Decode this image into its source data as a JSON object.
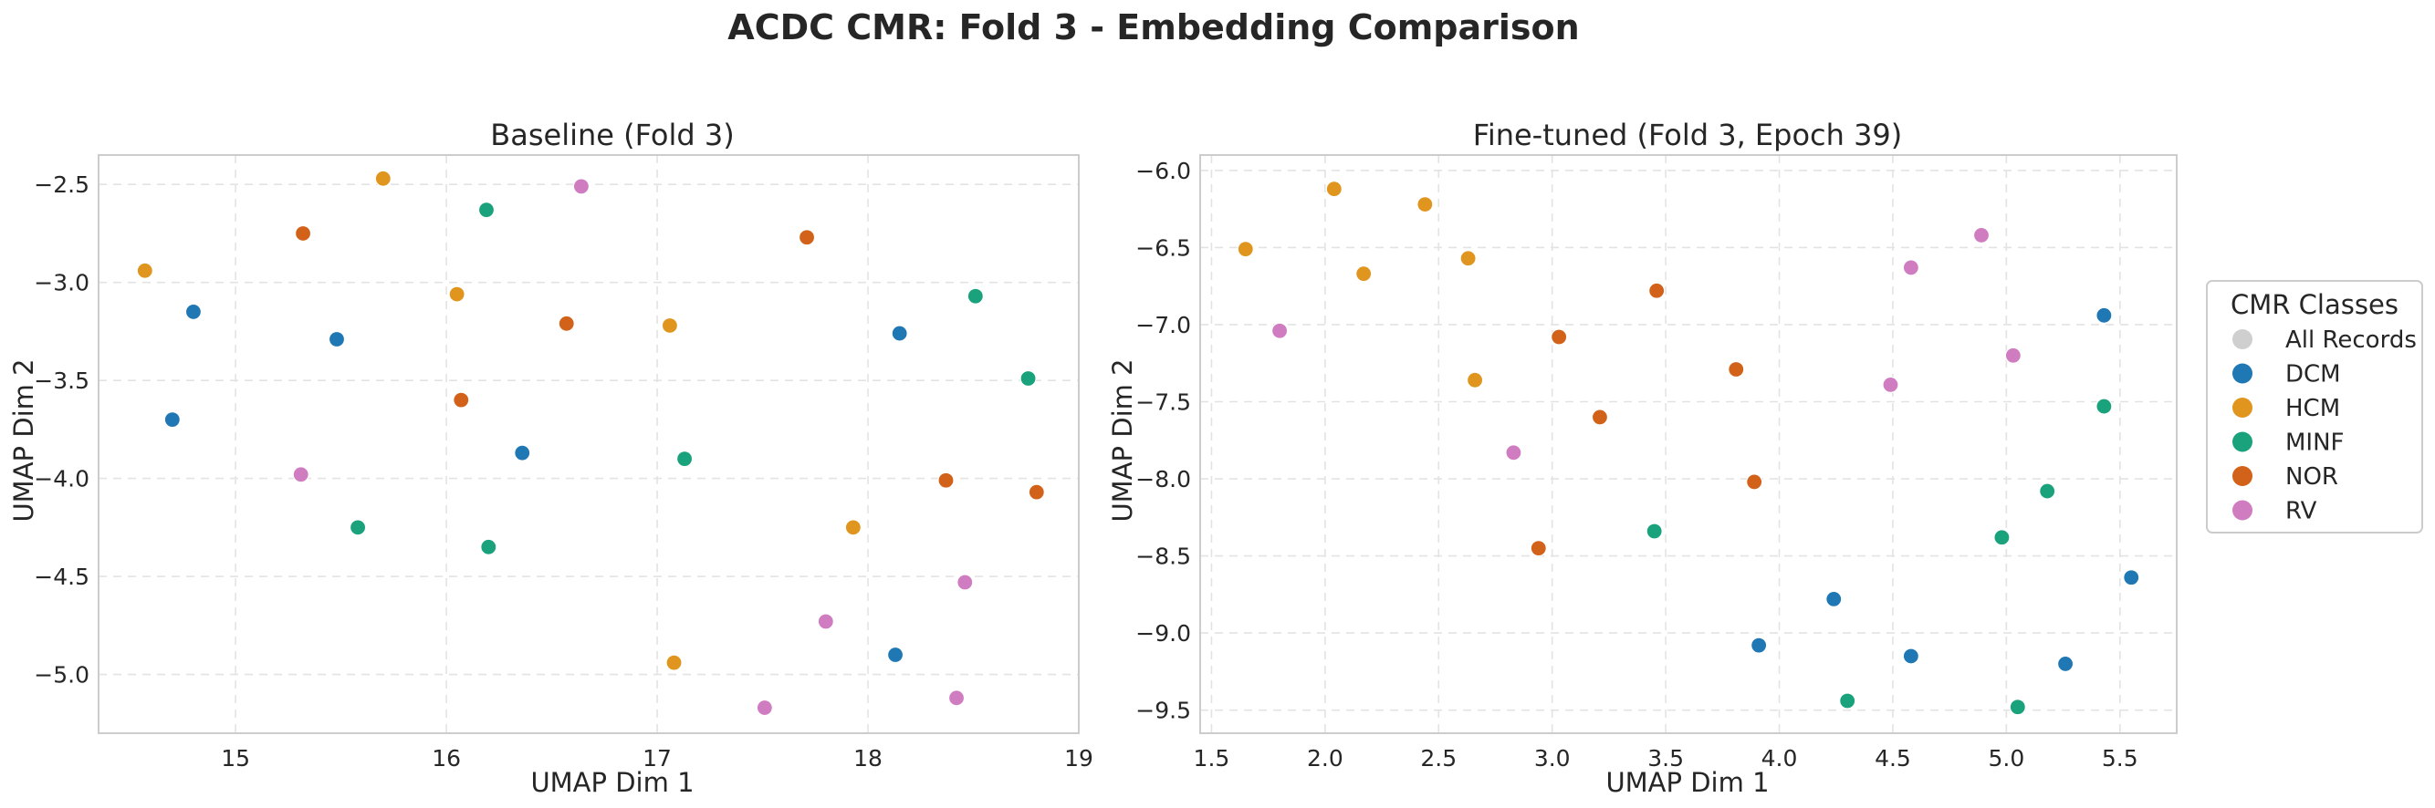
{
  "title": "ACDC CMR: Fold 3 - Embedding Comparison",
  "colors": {
    "All Records": "#cfcfcf",
    "DCM": "#1f77b4",
    "HCM": "#e0951e",
    "MINF": "#1aa27c",
    "NOR": "#d2621a",
    "RV": "#d07cc0"
  },
  "legend": {
    "title": "CMR Classes",
    "entries": [
      "All Records",
      "DCM",
      "HCM",
      "MINF",
      "NOR",
      "RV"
    ],
    "placement": "right"
  },
  "chart_data": [
    {
      "type": "scatter",
      "title": "Baseline (Fold 3)",
      "xlabel": "UMAP Dim 1",
      "ylabel": "UMAP Dim 2",
      "xlim": [
        14.35,
        19.0
      ],
      "ylim": [
        -5.3,
        -2.35
      ],
      "xticks": [
        15,
        16,
        17,
        18,
        19
      ],
      "yticks": [
        -2.5,
        -3.0,
        -3.5,
        -4.0,
        -4.5,
        -5.0
      ],
      "grid": true,
      "series": [
        {
          "name": "DCM",
          "points": [
            [
              14.8,
              -3.15
            ],
            [
              14.7,
              -3.7
            ],
            [
              15.48,
              -3.29
            ],
            [
              16.36,
              -3.87
            ],
            [
              18.15,
              -3.26
            ],
            [
              18.13,
              -4.9
            ]
          ]
        },
        {
          "name": "HCM",
          "points": [
            [
              14.57,
              -2.94
            ],
            [
              15.7,
              -2.47
            ],
            [
              16.05,
              -3.06
            ],
            [
              17.06,
              -3.22
            ],
            [
              17.93,
              -4.25
            ],
            [
              17.08,
              -4.94
            ]
          ]
        },
        {
          "name": "MINF",
          "points": [
            [
              16.19,
              -2.63
            ],
            [
              18.51,
              -3.07
            ],
            [
              18.76,
              -3.49
            ],
            [
              17.13,
              -3.9
            ],
            [
              15.58,
              -4.25
            ],
            [
              16.2,
              -4.35
            ]
          ]
        },
        {
          "name": "NOR",
          "points": [
            [
              15.32,
              -2.75
            ],
            [
              17.71,
              -2.77
            ],
            [
              16.57,
              -3.21
            ],
            [
              16.07,
              -3.6
            ],
            [
              18.37,
              -4.01
            ],
            [
              18.8,
              -4.07
            ]
          ]
        },
        {
          "name": "RV",
          "points": [
            [
              16.64,
              -2.51
            ],
            [
              15.31,
              -3.98
            ],
            [
              18.46,
              -4.53
            ],
            [
              17.8,
              -4.73
            ],
            [
              17.51,
              -5.17
            ],
            [
              18.42,
              -5.12
            ]
          ]
        }
      ]
    },
    {
      "type": "scatter",
      "title": "Fine-tuned (Fold 3, Epoch 39)",
      "xlabel": "UMAP Dim 1",
      "ylabel": "UMAP Dim 2",
      "xlim": [
        1.45,
        5.75
      ],
      "ylim": [
        -9.65,
        -5.9
      ],
      "xticks": [
        1.5,
        2.0,
        2.5,
        3.0,
        3.5,
        4.0,
        4.5,
        5.0,
        5.5
      ],
      "yticks": [
        -6.0,
        -6.5,
        -7.0,
        -7.5,
        -8.0,
        -8.5,
        -9.0,
        -9.5
      ],
      "grid": true,
      "series": [
        {
          "name": "DCM",
          "points": [
            [
              5.43,
              -6.94
            ],
            [
              5.55,
              -8.64
            ],
            [
              4.24,
              -8.78
            ],
            [
              3.91,
              -9.08
            ],
            [
              4.58,
              -9.15
            ],
            [
              5.26,
              -9.2
            ]
          ]
        },
        {
          "name": "HCM",
          "points": [
            [
              1.65,
              -6.51
            ],
            [
              2.04,
              -6.12
            ],
            [
              2.44,
              -6.22
            ],
            [
              2.17,
              -6.67
            ],
            [
              2.63,
              -6.57
            ],
            [
              2.66,
              -7.36
            ]
          ]
        },
        {
          "name": "MINF",
          "points": [
            [
              5.43,
              -7.53
            ],
            [
              5.18,
              -8.08
            ],
            [
              4.98,
              -8.38
            ],
            [
              3.45,
              -8.34
            ],
            [
              4.3,
              -9.44
            ],
            [
              5.05,
              -9.48
            ]
          ]
        },
        {
          "name": "NOR",
          "points": [
            [
              3.46,
              -6.78
            ],
            [
              3.03,
              -7.08
            ],
            [
              3.81,
              -7.29
            ],
            [
              3.21,
              -7.6
            ],
            [
              3.89,
              -8.02
            ],
            [
              2.94,
              -8.45
            ]
          ]
        },
        {
          "name": "RV",
          "points": [
            [
              1.8,
              -7.04
            ],
            [
              4.89,
              -6.42
            ],
            [
              4.58,
              -6.63
            ],
            [
              5.03,
              -7.2
            ],
            [
              4.49,
              -7.39
            ],
            [
              2.83,
              -7.83
            ]
          ]
        }
      ]
    }
  ]
}
